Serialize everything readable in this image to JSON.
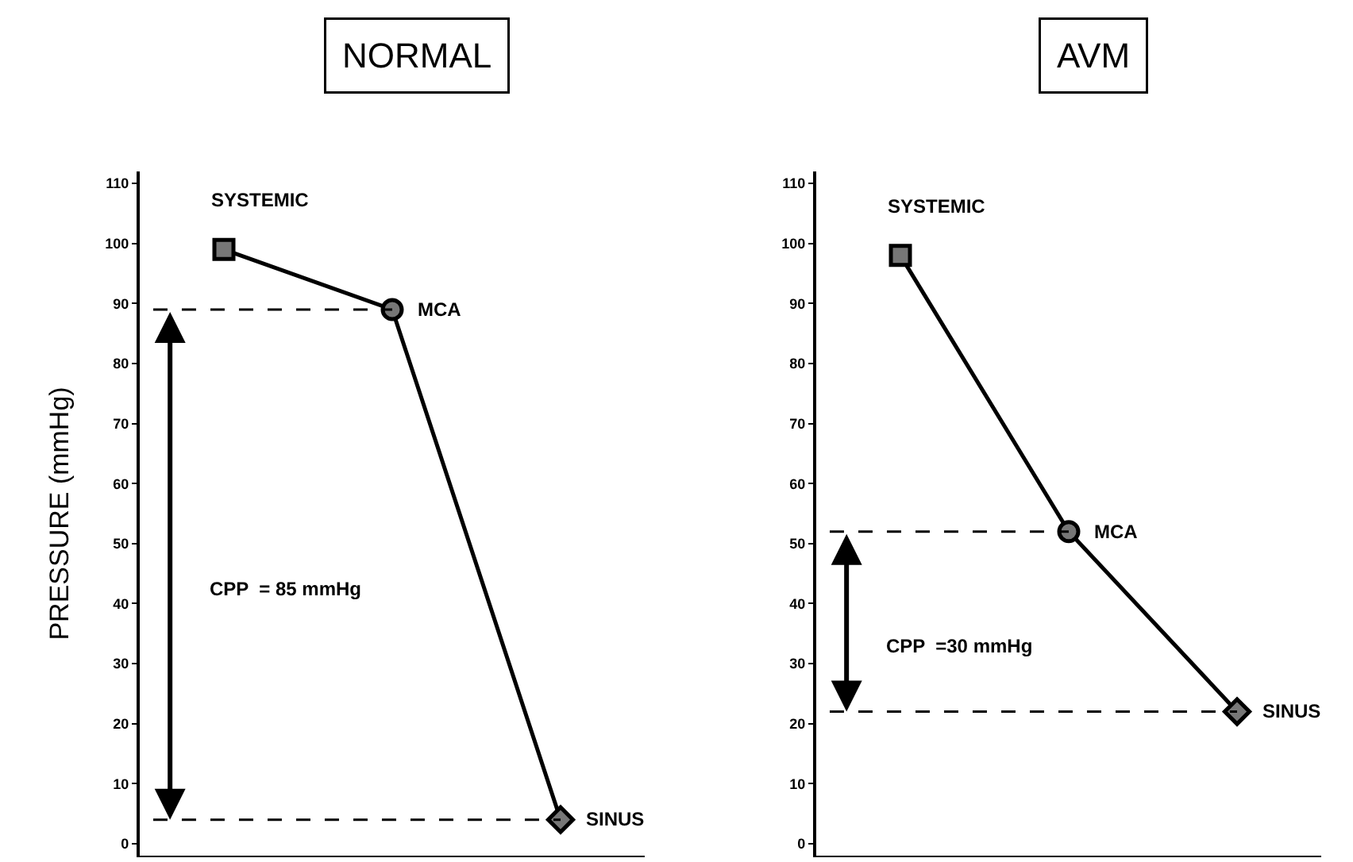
{
  "chart_data": [
    {
      "type": "line",
      "title": "NORMAL",
      "ylabel": "PRESSURE (mmHg)",
      "categories": [
        null,
        null,
        null
      ],
      "ylim": [
        -2,
        112
      ],
      "yticks": [
        0,
        10,
        20,
        30,
        40,
        50,
        60,
        70,
        80,
        90,
        100,
        110
      ],
      "grid": false,
      "legend": false,
      "tick_labels": "y",
      "series": [
        {
          "type": "line",
          "color": "#000000",
          "values": [
            99,
            89,
            4
          ],
          "marker": "none",
          "line_style": "solid"
        },
        {
          "type": "scatter",
          "color": "#000000",
          "values": [
            99,
            null,
            null
          ],
          "marker": "square"
        },
        {
          "type": "scatter",
          "color": "#000000",
          "values": [
            null,
            89,
            null
          ],
          "marker": "circle"
        },
        {
          "type": "scatter",
          "color": "#000000",
          "values": [
            null,
            null,
            4
          ],
          "marker": "diamond"
        }
      ],
      "ref_lines": [
        {
          "axis": "y",
          "value": 89,
          "color": "#000000",
          "line_style": "dashed"
        },
        {
          "axis": "y",
          "value": 4,
          "color": "#000000",
          "line_style": "dashed"
        }
      ],
      "annotations": [
        "SYSTEMIC",
        "MCA",
        "SINUS",
        "CPP  = 85 mmHg"
      ]
    },
    {
      "type": "line",
      "title": "AVM",
      "categories": [
        null,
        null,
        null
      ],
      "ylim": [
        -2,
        112
      ],
      "yticks": [
        0,
        10,
        20,
        30,
        40,
        50,
        60,
        70,
        80,
        90,
        100,
        110
      ],
      "grid": false,
      "legend": false,
      "tick_labels": "y",
      "series": [
        {
          "type": "line",
          "color": "#000000",
          "values": [
            98,
            52,
            22
          ],
          "marker": "none",
          "line_style": "solid"
        },
        {
          "type": "scatter",
          "color": "#000000",
          "values": [
            98,
            null,
            null
          ],
          "marker": "square"
        },
        {
          "type": "scatter",
          "color": "#000000",
          "values": [
            null,
            52,
            null
          ],
          "marker": "circle"
        },
        {
          "type": "scatter",
          "color": "#000000",
          "values": [
            null,
            null,
            22
          ],
          "marker": "diamond"
        }
      ],
      "ref_lines": [
        {
          "axis": "y",
          "value": 52,
          "color": "#000000",
          "line_style": "dashed"
        },
        {
          "axis": "y",
          "value": 22,
          "color": "#000000",
          "line_style": "dashed"
        }
      ],
      "annotations": [
        "SYSTEMIC",
        "MCA",
        "SINUS",
        "CPP  =30 mmHg"
      ]
    }
  ]
}
